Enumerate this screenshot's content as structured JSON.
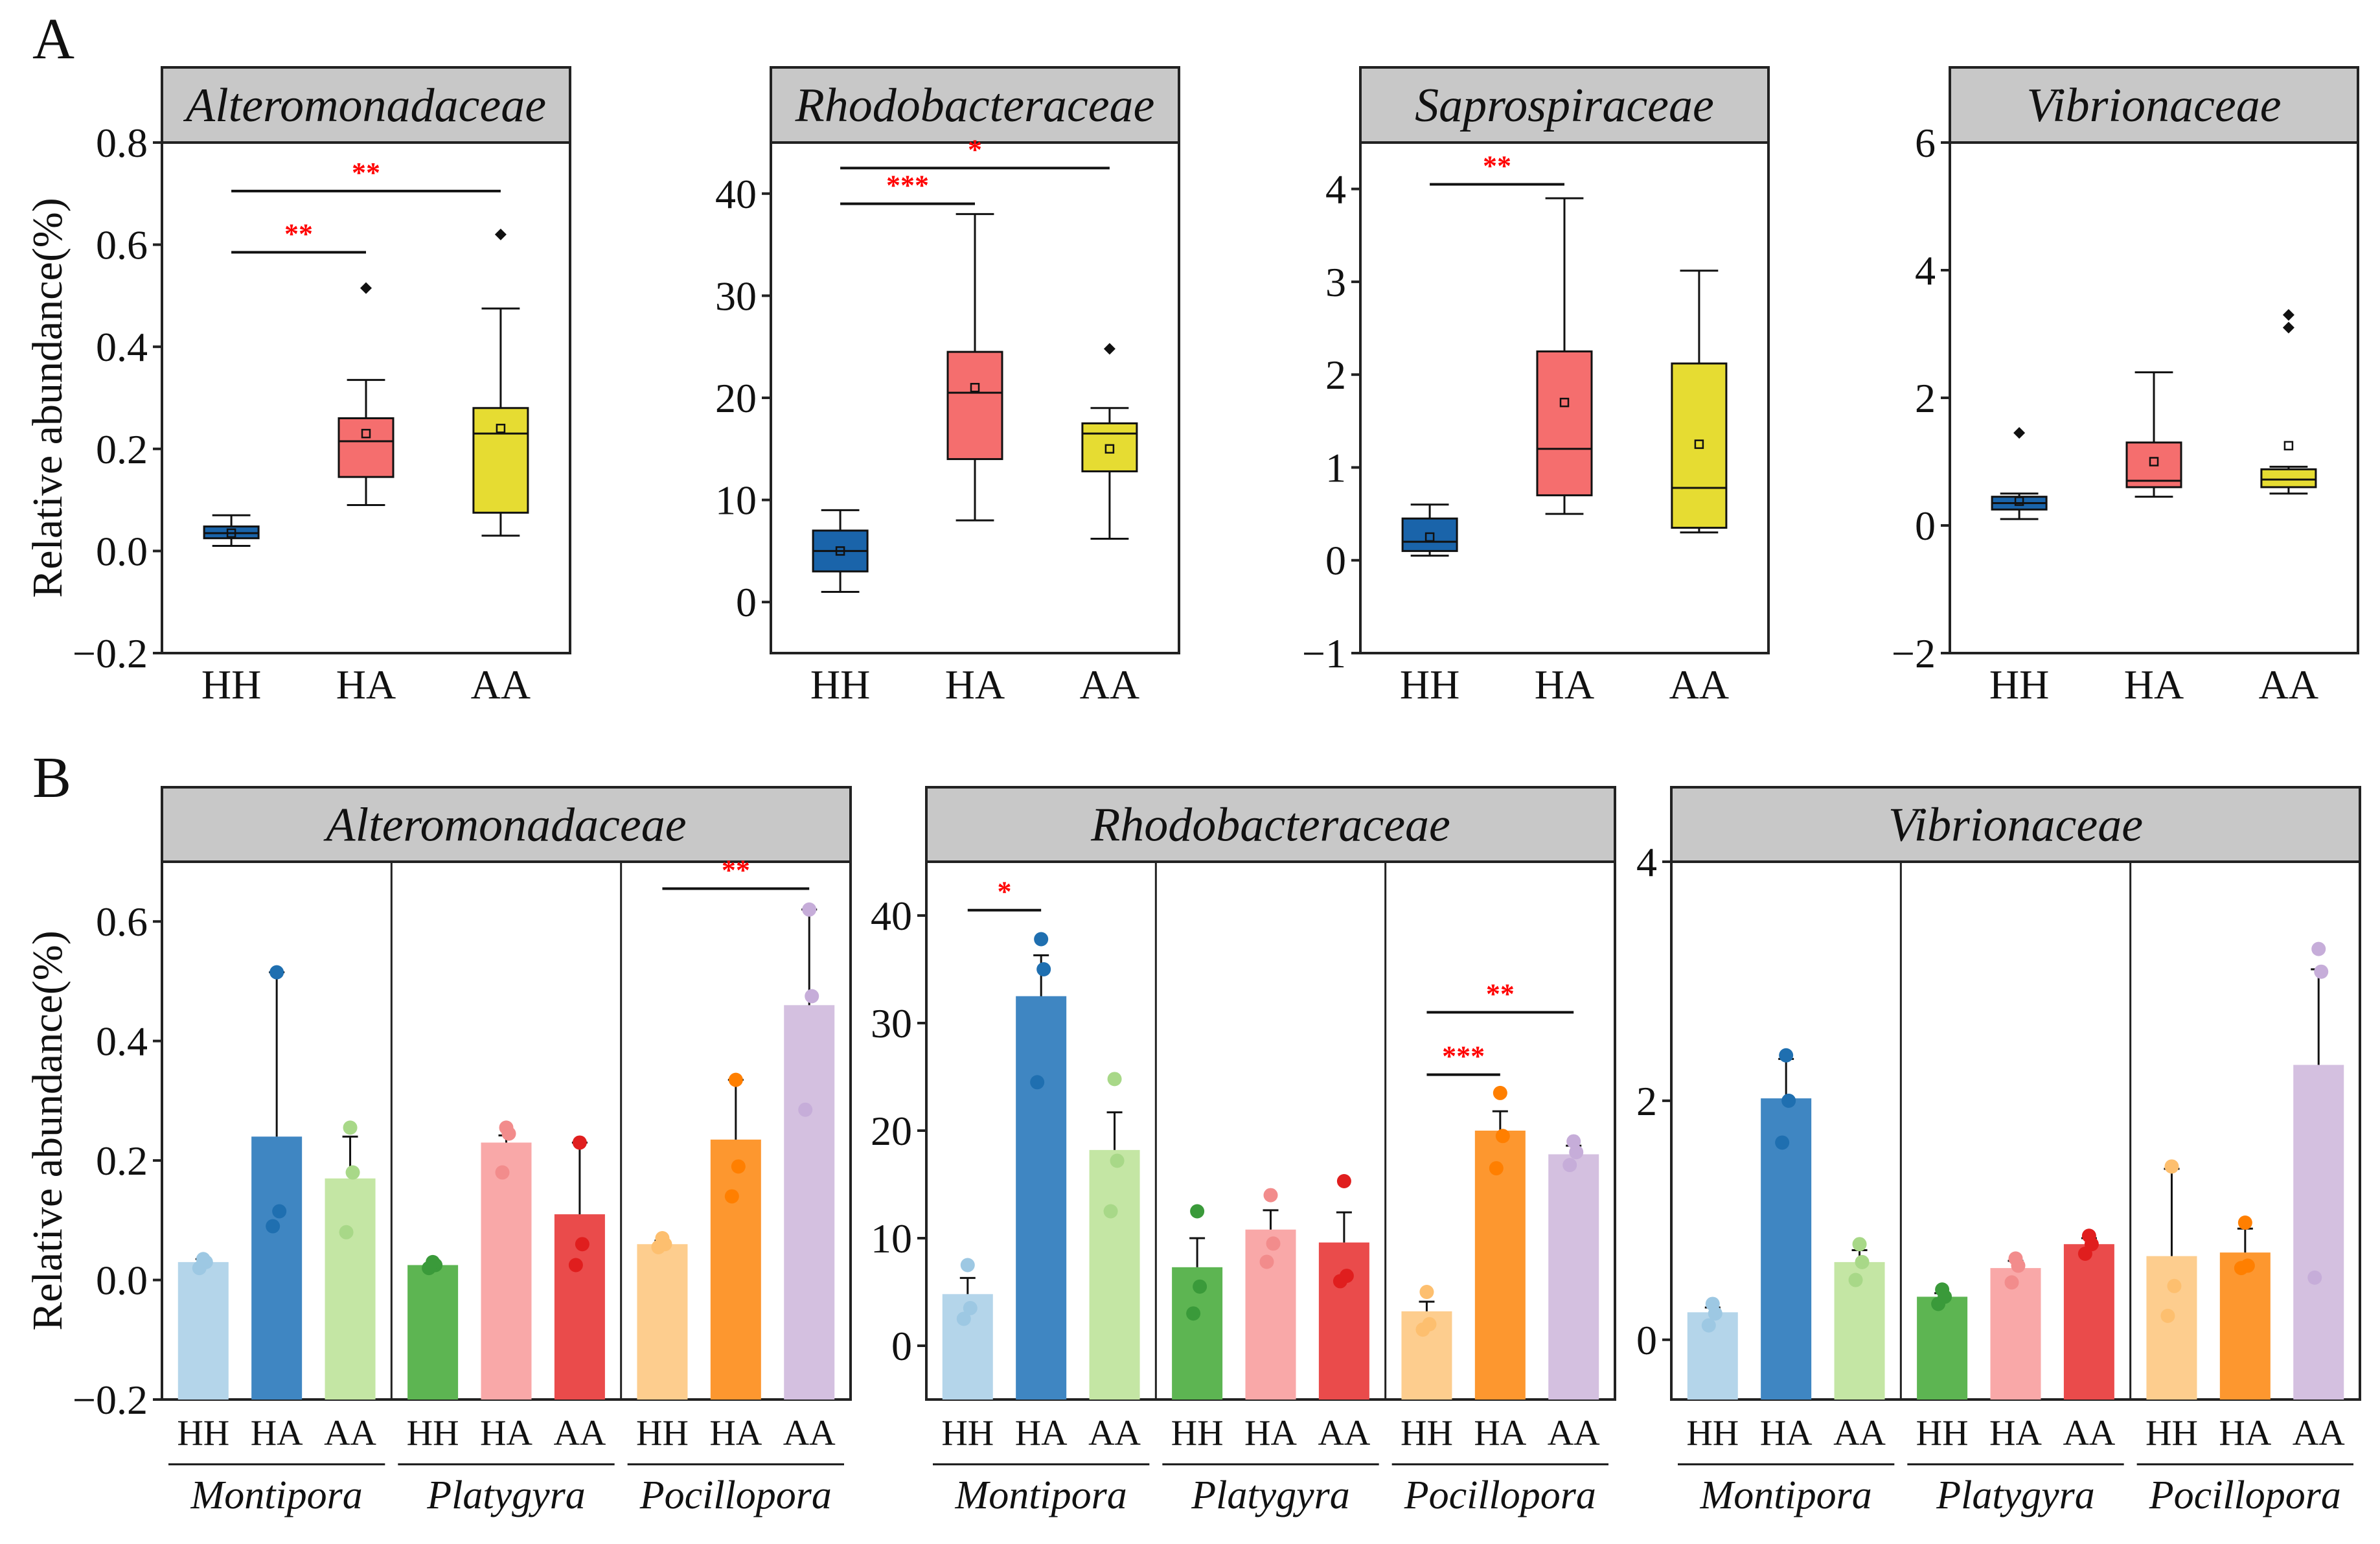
{
  "panel_labels": [
    "A",
    "B"
  ],
  "chart_data": [
    {
      "panel": "A",
      "type": "box",
      "title": "Alteromonadaceae",
      "ylabel": "Relative abundance(%)",
      "ylim": [
        -0.2,
        0.8
      ],
      "yticks": [
        -0.2,
        0.0,
        0.2,
        0.4,
        0.6,
        0.8
      ],
      "ytick_labels": [
        "−0.2",
        "0.0",
        "0.2",
        "0.4",
        "0.6",
        "0.8"
      ],
      "categories": [
        "HH",
        "HA",
        "AA"
      ],
      "colors": [
        "#1a64aa",
        "#f56e6e",
        "#e6dc32"
      ],
      "boxes": [
        {
          "min": 0.01,
          "q1": 0.025,
          "median": 0.035,
          "q3": 0.048,
          "max": 0.07,
          "mean": 0.035,
          "outliers": []
        },
        {
          "min": 0.09,
          "q1": 0.145,
          "median": 0.215,
          "q3": 0.26,
          "max": 0.335,
          "mean": 0.23,
          "outliers": [
            0.515
          ]
        },
        {
          "min": 0.03,
          "q1": 0.075,
          "median": 0.23,
          "q3": 0.28,
          "max": 0.475,
          "mean": 0.24,
          "outliers": [
            0.62
          ]
        }
      ],
      "significance": [
        {
          "from": 0,
          "to": 1,
          "label": "**",
          "y": 0.585
        },
        {
          "from": 0,
          "to": 2,
          "label": "**",
          "y": 0.705
        }
      ]
    },
    {
      "panel": "A",
      "type": "box",
      "title": "Rhodobacteraceae",
      "ylabel": "",
      "ylim": [
        -5,
        45
      ],
      "yticks": [
        0,
        10,
        20,
        30,
        40
      ],
      "ytick_labels": [
        "0",
        "10",
        "20",
        "30",
        "40"
      ],
      "categories": [
        "HH",
        "HA",
        "AA"
      ],
      "colors": [
        "#1a64aa",
        "#f56e6e",
        "#e6dc32"
      ],
      "boxes": [
        {
          "min": 1,
          "q1": 3,
          "median": 5,
          "q3": 7,
          "max": 9,
          "mean": 5,
          "outliers": []
        },
        {
          "min": 8,
          "q1": 14,
          "median": 20.5,
          "q3": 24.5,
          "max": 38,
          "mean": 21,
          "outliers": []
        },
        {
          "min": 6.2,
          "q1": 12.8,
          "median": 16.5,
          "q3": 17.5,
          "max": 19,
          "mean": 15,
          "outliers": [
            24.8
          ]
        }
      ],
      "significance": [
        {
          "from": 0,
          "to": 1,
          "label": "***",
          "y": 39
        },
        {
          "from": 0,
          "to": 2,
          "label": "*",
          "y": 42.5
        }
      ]
    },
    {
      "panel": "A",
      "type": "box",
      "title": "Saprospiraceae",
      "ylabel": "",
      "ylim": [
        -1,
        4.5
      ],
      "yticks": [
        -1,
        0,
        1,
        2,
        3,
        4
      ],
      "ytick_labels": [
        "−1",
        "0",
        "1",
        "2",
        "3",
        "4"
      ],
      "categories": [
        "HH",
        "HA",
        "AA"
      ],
      "colors": [
        "#1a64aa",
        "#f56e6e",
        "#e6dc32"
      ],
      "boxes": [
        {
          "min": 0.05,
          "q1": 0.1,
          "median": 0.2,
          "q3": 0.45,
          "max": 0.6,
          "mean": 0.25,
          "outliers": []
        },
        {
          "min": 0.5,
          "q1": 0.7,
          "median": 1.2,
          "q3": 2.25,
          "max": 3.9,
          "mean": 1.7,
          "outliers": []
        },
        {
          "min": 0.3,
          "q1": 0.35,
          "median": 0.78,
          "q3": 2.12,
          "max": 3.12,
          "mean": 1.25,
          "outliers": []
        }
      ],
      "significance": [
        {
          "from": 0,
          "to": 1,
          "label": "**",
          "y": 4.05
        }
      ]
    },
    {
      "panel": "A",
      "type": "box",
      "title": "Vibrionaceae",
      "ylabel": "",
      "ylim": [
        -2,
        6
      ],
      "yticks": [
        -2,
        0,
        2,
        4,
        6
      ],
      "ytick_labels": [
        "−2",
        "0",
        "2",
        "4",
        "6"
      ],
      "categories": [
        "HH",
        "HA",
        "AA"
      ],
      "colors": [
        "#1a64aa",
        "#f56e6e",
        "#e6dc32"
      ],
      "boxes": [
        {
          "min": 0.1,
          "q1": 0.25,
          "median": 0.35,
          "q3": 0.45,
          "max": 0.5,
          "mean": 0.38,
          "outliers": [
            1.45
          ]
        },
        {
          "min": 0.45,
          "q1": 0.6,
          "median": 0.7,
          "q3": 1.3,
          "max": 2.4,
          "mean": 1.0,
          "outliers": []
        },
        {
          "min": 0.5,
          "q1": 0.6,
          "median": 0.72,
          "q3": 0.88,
          "max": 0.92,
          "mean": 1.25,
          "outliers": [
            3.1,
            3.3
          ]
        }
      ],
      "significance": []
    },
    {
      "panel": "B",
      "type": "bar",
      "title": "Alteromonadaceae",
      "ylabel": "Relative abundance(%)",
      "ylim": [
        -0.2,
        0.7
      ],
      "yticks": [
        -0.2,
        0.0,
        0.2,
        0.4,
        0.6
      ],
      "ytick_labels": [
        "−0.2",
        "0.0",
        "0.2",
        "0.4",
        "0.6"
      ],
      "groups": [
        "Montipora",
        "Platygyra",
        "Pocillopora"
      ],
      "categories": [
        "HH",
        "HA",
        "AA"
      ],
      "bars": [
        [
          {
            "value": 0.03,
            "err": 0.005,
            "color": "#b4d5ea",
            "dot": "#9dc8e3",
            "points": [
              0.02,
              0.03,
              0.035
            ]
          },
          {
            "value": 0.24,
            "err": 0.275,
            "color": "#3f86c2",
            "dot": "#1f6fb0",
            "points": [
              0.09,
              0.115,
              0.515
            ]
          },
          {
            "value": 0.17,
            "err": 0.07,
            "color": "#c4e6a4",
            "dot": "#a8d888",
            "points": [
              0.08,
              0.18,
              0.255
            ]
          }
        ],
        [
          {
            "value": 0.025,
            "err": 0.003,
            "color": "#5db552",
            "dot": "#3a9a3a",
            "points": [
              0.02,
              0.025,
              0.03
            ]
          },
          {
            "value": 0.23,
            "err": 0.012,
            "color": "#f9a8a8",
            "dot": "#f28c8c",
            "points": [
              0.18,
              0.245,
              0.255
            ]
          },
          {
            "value": 0.11,
            "err": 0.12,
            "color": "#ea4b4b",
            "dot": "#e01e1e",
            "points": [
              0.025,
              0.06,
              0.23
            ]
          }
        ],
        [
          {
            "value": 0.06,
            "err": 0.006,
            "color": "#fdcd8e",
            "dot": "#fdbf6f",
            "points": [
              0.055,
              0.06,
              0.07
            ]
          },
          {
            "value": 0.235,
            "err": 0.1,
            "color": "#fd972f",
            "dot": "#ff7f00",
            "points": [
              0.14,
              0.19,
              0.335
            ]
          },
          {
            "value": 0.46,
            "err": 0.16,
            "color": "#d4c0e0",
            "dot": "#c6add9",
            "points": [
              0.285,
              0.475,
              0.62
            ]
          }
        ]
      ],
      "significance": [
        {
          "group": 2,
          "from": 0,
          "to": 2,
          "label": "**",
          "y": 0.655
        }
      ]
    },
    {
      "panel": "B",
      "type": "bar",
      "title": "Rhodobacteraceae",
      "ylabel": "",
      "ylim": [
        -5,
        45
      ],
      "yticks": [
        0,
        10,
        20,
        30,
        40
      ],
      "ytick_labels": [
        "0",
        "10",
        "20",
        "30",
        "40"
      ],
      "groups": [
        "Montipora",
        "Platygyra",
        "Pocillopora"
      ],
      "categories": [
        "HH",
        "HA",
        "AA"
      ],
      "bars": [
        [
          {
            "value": 4.8,
            "err": 1.5,
            "color": "#b4d5ea",
            "dot": "#9dc8e3",
            "points": [
              2.5,
              3.5,
              7.5
            ]
          },
          {
            "value": 32.5,
            "err": 3.8,
            "color": "#3f86c2",
            "dot": "#1f6fb0",
            "points": [
              24.5,
              35.0,
              37.8
            ]
          },
          {
            "value": 18.2,
            "err": 3.5,
            "color": "#c4e6a4",
            "dot": "#a8d888",
            "points": [
              12.5,
              17.2,
              24.8
            ]
          }
        ],
        [
          {
            "value": 7.3,
            "err": 2.7,
            "color": "#5db552",
            "dot": "#3a9a3a",
            "points": [
              3.0,
              5.5,
              12.5
            ]
          },
          {
            "value": 10.8,
            "err": 1.8,
            "color": "#f9a8a8",
            "dot": "#f28c8c",
            "points": [
              7.8,
              9.5,
              14.0
            ]
          },
          {
            "value": 9.6,
            "err": 2.8,
            "color": "#ea4b4b",
            "dot": "#e01e1e",
            "points": [
              6.0,
              6.5,
              15.3
            ]
          }
        ],
        [
          {
            "value": 3.2,
            "err": 0.9,
            "color": "#fdcd8e",
            "dot": "#fdbf6f",
            "points": [
              1.5,
              2.0,
              5.0
            ]
          },
          {
            "value": 20.0,
            "err": 1.8,
            "color": "#fd972f",
            "dot": "#ff7f00",
            "points": [
              16.5,
              19.5,
              23.5
            ]
          },
          {
            "value": 17.8,
            "err": 0.8,
            "color": "#d4c0e0",
            "dot": "#c6add9",
            "points": [
              16.8,
              18.0,
              19.0
            ]
          }
        ]
      ],
      "significance": [
        {
          "group": 0,
          "from": 0,
          "to": 1,
          "label": "*",
          "y": 40.5
        },
        {
          "group": 2,
          "from": 0,
          "to": 1,
          "label": "***",
          "y": 25.2
        },
        {
          "group": 2,
          "from": 0,
          "to": 2,
          "label": "**",
          "y": 31.0
        }
      ]
    },
    {
      "panel": "B",
      "type": "bar",
      "title": "Vibrionaceae",
      "ylabel": "",
      "ylim": [
        -0.5,
        4
      ],
      "yticks": [
        0,
        2,
        4
      ],
      "ytick_labels": [
        "0",
        "2",
        "4"
      ],
      "groups": [
        "Montipora",
        "Platygyra",
        "Pocillopora"
      ],
      "categories": [
        "HH",
        "HA",
        "AA"
      ],
      "bars": [
        [
          {
            "value": 0.23,
            "err": 0.04,
            "color": "#b4d5ea",
            "dot": "#9dc8e3",
            "points": [
              0.12,
              0.22,
              0.3
            ]
          },
          {
            "value": 2.02,
            "err": 0.33,
            "color": "#3f86c2",
            "dot": "#1f6fb0",
            "points": [
              1.65,
              2.0,
              2.38
            ]
          },
          {
            "value": 0.65,
            "err": 0.1,
            "color": "#c4e6a4",
            "dot": "#a8d888",
            "points": [
              0.5,
              0.65,
              0.8
            ]
          }
        ],
        [
          {
            "value": 0.36,
            "err": 0.03,
            "color": "#5db552",
            "dot": "#3a9a3a",
            "points": [
              0.3,
              0.36,
              0.42
            ]
          },
          {
            "value": 0.6,
            "err": 0.06,
            "color": "#f9a8a8",
            "dot": "#f28c8c",
            "points": [
              0.48,
              0.62,
              0.68
            ]
          },
          {
            "value": 0.8,
            "err": 0.05,
            "color": "#ea4b4b",
            "dot": "#e01e1e",
            "points": [
              0.72,
              0.8,
              0.87
            ]
          }
        ],
        [
          {
            "value": 0.7,
            "err": 0.73,
            "color": "#fdcd8e",
            "dot": "#fdbf6f",
            "points": [
              0.2,
              0.45,
              1.45
            ]
          },
          {
            "value": 0.73,
            "err": 0.2,
            "color": "#fd972f",
            "dot": "#ff7f00",
            "points": [
              0.6,
              0.62,
              0.98
            ]
          },
          {
            "value": 2.3,
            "err": 0.8,
            "color": "#d4c0e0",
            "dot": "#c6add9",
            "points": [
              0.52,
              3.08,
              3.27
            ]
          }
        ]
      ],
      "significance": []
    }
  ]
}
